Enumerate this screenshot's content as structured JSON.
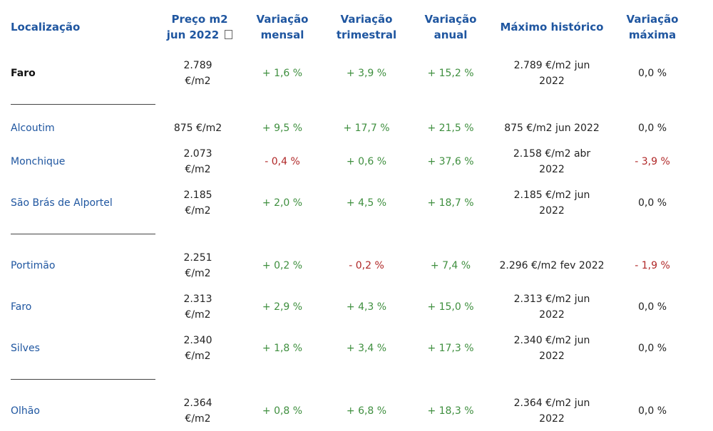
{
  "headers": {
    "location": "Localização",
    "price": [
      "Preço m2",
      "jun 2022"
    ],
    "monthly": [
      "Variação",
      "mensal"
    ],
    "quarterly": [
      "Variação",
      "trimestral"
    ],
    "annual": [
      "Variação",
      "anual"
    ],
    "max_hist": "Máximo histórico",
    "max_var": [
      "Variação",
      "máxima"
    ]
  },
  "rows": [
    {
      "name": "Faro",
      "price": [
        "2.789",
        "€/m2"
      ],
      "monthly": "+ 1,6 %",
      "quarterly": "+ 3,9 %",
      "annual": "+ 15,2 %",
      "max_hist": [
        "2.789 €/m2 jun",
        "2022"
      ],
      "max_var": "0,0 %"
    },
    {
      "name": "Alcoutim",
      "price": [
        "875 €/m2"
      ],
      "monthly": "+ 9,5 %",
      "quarterly": "+ 17,7 %",
      "annual": "+ 21,5 %",
      "max_hist": [
        "875 €/m2 jun 2022"
      ],
      "max_var": "0,0 %"
    },
    {
      "name": "Monchique",
      "price": [
        "2.073",
        "€/m2"
      ],
      "monthly": "- 0,4 %",
      "quarterly": "+ 0,6 %",
      "annual": "+ 37,6 %",
      "max_hist": [
        "2.158 €/m2 abr",
        "2022"
      ],
      "max_var": "- 3,9 %"
    },
    {
      "name": "São Brás de Alportel",
      "price": [
        "2.185",
        "€/m2"
      ],
      "monthly": "+ 2,0 %",
      "quarterly": "+ 4,5 %",
      "annual": "+ 18,7 %",
      "max_hist": [
        "2.185 €/m2 jun",
        "2022"
      ],
      "max_var": "0,0 %"
    },
    {
      "name": "Portimão",
      "price": [
        "2.251",
        "€/m2"
      ],
      "monthly": "+ 0,2 %",
      "quarterly": "- 0,2 %",
      "annual": "+ 7,4 %",
      "max_hist": [
        "2.296 €/m2 fev 2022"
      ],
      "max_var": "- 1,9 %"
    },
    {
      "name": "Faro",
      "price": [
        "2.313",
        "€/m2"
      ],
      "monthly": "+ 2,9 %",
      "quarterly": "+ 4,3 %",
      "annual": "+ 15,0 %",
      "max_hist": [
        "2.313 €/m2 jun",
        "2022"
      ],
      "max_var": "0,0 %"
    },
    {
      "name": "Silves",
      "price": [
        "2.340",
        "€/m2"
      ],
      "monthly": "+ 1,8 %",
      "quarterly": "+ 3,4 %",
      "annual": "+ 17,3 %",
      "max_hist": [
        "2.340 €/m2 jun",
        "2022"
      ],
      "max_var": "0,0 %"
    },
    {
      "name": "Olhão",
      "price": [
        "2.364",
        "€/m2"
      ],
      "monthly": "+ 0,8 %",
      "quarterly": "+ 6,8 %",
      "annual": "+ 18,3 %",
      "max_hist": [
        "2.364 €/m2 jun",
        "2022"
      ],
      "max_var": "0,0 %"
    }
  ],
  "colors": {
    "header": "#1f56a0",
    "positive": "#3f8f3f",
    "negative": "#b02828"
  }
}
